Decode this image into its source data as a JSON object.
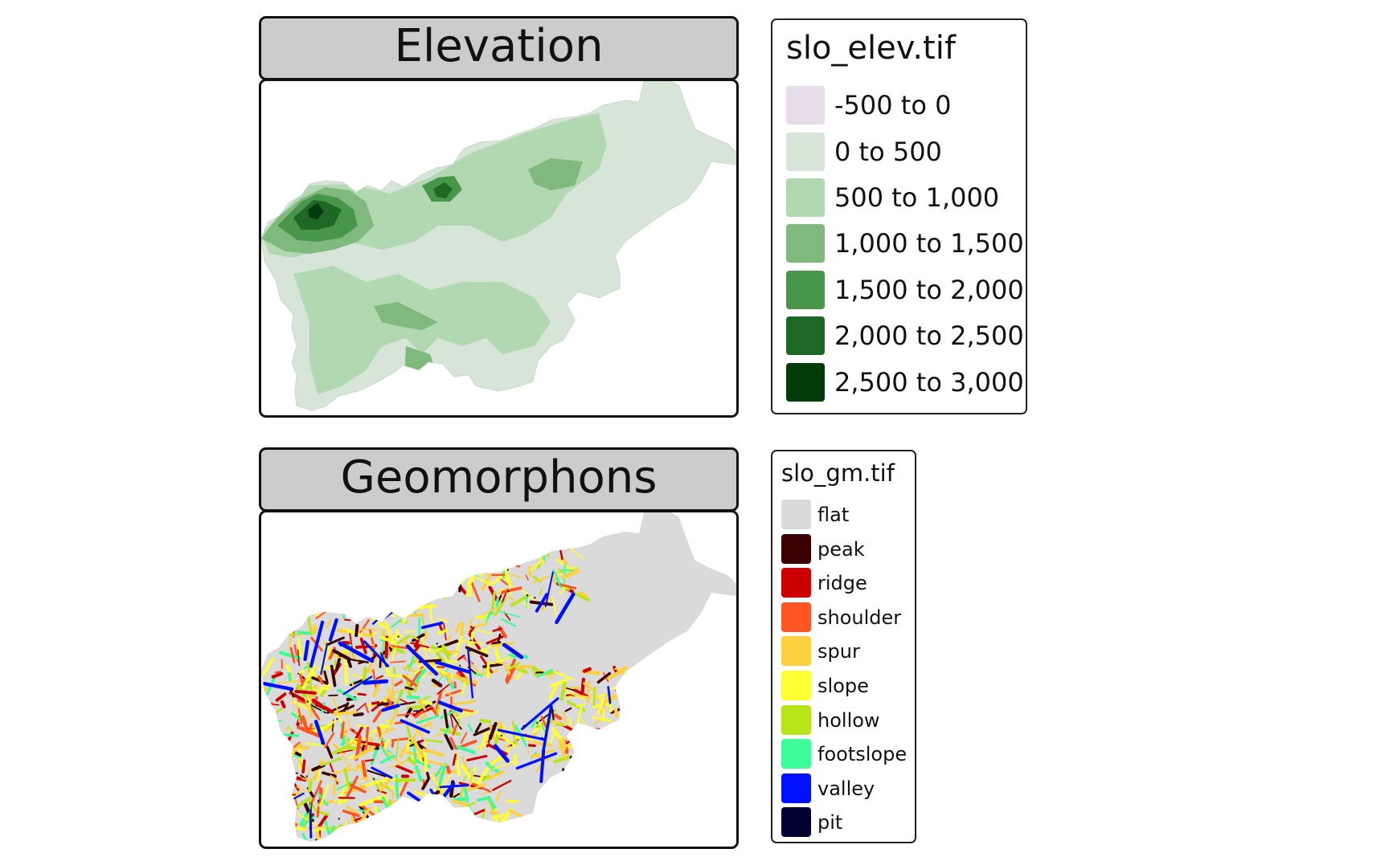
{
  "panels": [
    {
      "title": "Elevation"
    },
    {
      "title": "Geomorphons"
    }
  ],
  "elevation_legend": {
    "title": "slo_elev.tif",
    "items": [
      {
        "label": "-500 to 0",
        "color": "#e7dcea"
      },
      {
        "label": "0 to 500",
        "color": "#d6e5d7"
      },
      {
        "label": "500 to 1,000",
        "color": "#b2d8b1"
      },
      {
        "label": "1,000 to 1,500",
        "color": "#7fb97d"
      },
      {
        "label": "1,500 to 2,000",
        "color": "#48964a"
      },
      {
        "label": "2,000 to 2,500",
        "color": "#1f6725"
      },
      {
        "label": "2,500 to 3,000",
        "color": "#003b09"
      }
    ]
  },
  "geomorphons_legend": {
    "title": "slo_gm.tif",
    "items": [
      {
        "label": "flat",
        "color": "#dadada"
      },
      {
        "label": "peak",
        "color": "#3a0000"
      },
      {
        "label": "ridge",
        "color": "#cc0000"
      },
      {
        "label": "shoulder",
        "color": "#ff5522"
      },
      {
        "label": "spur",
        "color": "#fdd040"
      },
      {
        "label": "slope",
        "color": "#ffff33"
      },
      {
        "label": "hollow",
        "color": "#b8e41a"
      },
      {
        "label": "footslope",
        "color": "#3cfc9a"
      },
      {
        "label": "valley",
        "color": "#0010ff"
      },
      {
        "label": "pit",
        "color": "#000033"
      }
    ]
  }
}
